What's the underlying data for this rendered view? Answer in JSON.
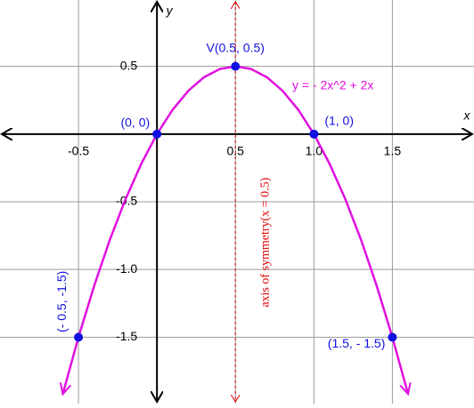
{
  "chart_data": {
    "type": "line",
    "x_label": "x",
    "y_label": "y",
    "xlim": [
      -1,
      2.02
    ],
    "ylim": [
      -1.99,
      0.99
    ],
    "xticks": [
      -0.5,
      0.5,
      {
        "value": 1,
        "label": "1.0"
      },
      1.5
    ],
    "yticks": [
      0.5,
      -0.5,
      {
        "value": -1,
        "label": "-1.0"
      },
      -1.5
    ],
    "grid": true,
    "series": [
      {
        "name": "y = - 2x^2 + 2x",
        "color": "#e010e0",
        "x": [
          -0.6,
          -0.5,
          -0.4,
          -0.3,
          -0.2,
          -0.1,
          0,
          0.1,
          0.2,
          0.3,
          0.4,
          0.5,
          0.6,
          0.7,
          0.8,
          0.9,
          1.0,
          1.1,
          1.2,
          1.3,
          1.4,
          1.5,
          1.6
        ],
        "values": [
          -1.92,
          -1.5,
          -1.12,
          -0.78,
          -0.48,
          -0.22,
          0,
          0.18,
          0.32,
          0.42,
          0.48,
          0.5,
          0.48,
          0.42,
          0.32,
          0.18,
          0,
          -0.22,
          -0.48,
          -0.78,
          -1.12,
          -1.5,
          -1.92
        ]
      }
    ],
    "points": {
      "color": "#1010e0",
      "x": [
        -0.5,
        0,
        0.5,
        1,
        1.5
      ],
      "values": [
        -1.5,
        0,
        0.5,
        0,
        -1.5
      ],
      "labels": [
        "(- 0.5, -1.5)",
        "(0, 0)",
        "V(0.5, 0.5)",
        "(1, 0)",
        "(1.5, - 1.5)"
      ]
    },
    "symmetry": {
      "x": 0.5,
      "label": "axis of symmetry(x = 0.5)",
      "color": "#e00000"
    }
  }
}
